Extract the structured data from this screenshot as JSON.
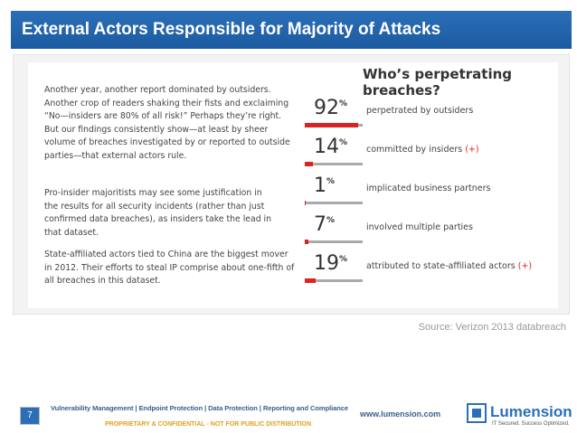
{
  "header": {
    "title": "External Actors Responsible for Majority of Attacks"
  },
  "figure": {
    "paragraphs": [
      [
        "Another year, another report dominated by outsiders.",
        "Another crop of readers shaking their fists and exclaiming",
        "“No—insiders are 80% of all risk!” Perhaps they’re right.",
        "But our findings consistently show—at least by sheer",
        "volume of breaches investigated by or reported to outside",
        "parties—that external actors rule."
      ],
      [
        "Pro-insider majoritists may see some justification in",
        "the results for all security incidents (rather than just",
        "confirmed data breaches), as insiders take the lead in",
        "that dataset."
      ],
      [
        "State-affiliated actors tied to China are the biggest mover",
        "in 2012. Their efforts to steal IP comprise about one-fifth of",
        "all breaches in this dataset."
      ]
    ],
    "heading": "Who’s perpetrating breaches?",
    "stats": [
      {
        "value": 92,
        "unit": "%",
        "text": "perpetrated by outsiders"
      },
      {
        "value": 14,
        "unit": "%",
        "text": "committed by insiders",
        "marker": "(+)"
      },
      {
        "value": 1,
        "unit": "%",
        "text": "implicated business partners"
      },
      {
        "value": 7,
        "unit": "%",
        "text": "involved multiple parties"
      },
      {
        "value": 19,
        "unit": "%",
        "text": "attributed to state-affiliated actors",
        "marker": "(+)"
      }
    ]
  },
  "source": "Source: Verizon 2013 databreach",
  "footer": {
    "page": "7",
    "services": "Vulnerability Management | Endpoint Protection | Data Protection | Reporting and Compliance",
    "confidential": "PROPRIETARY & CONFIDENTIAL - NOT FOR PUBLIC DISTRIBUTION",
    "url": "www.lumension.com",
    "brand": "Lumension",
    "tagline": "IT Secured. Success Optimized."
  }
}
